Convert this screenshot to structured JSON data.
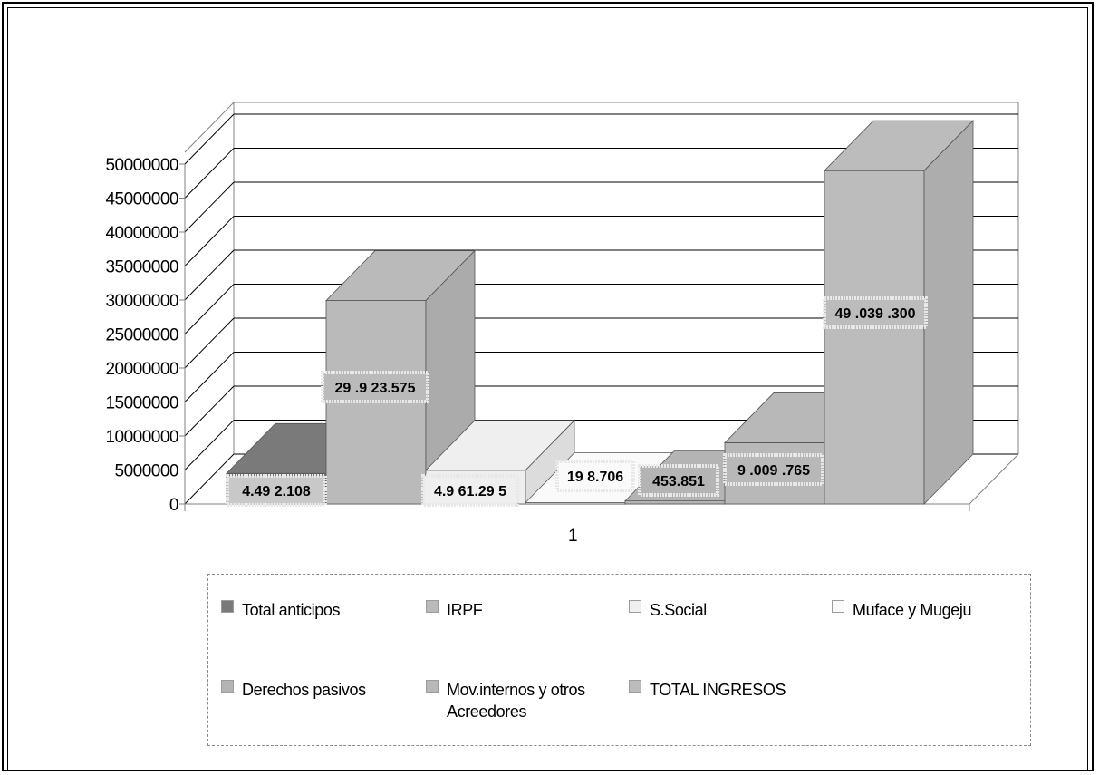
{
  "chart_data": {
    "type": "bar",
    "categories": [
      "1"
    ],
    "ylim": [
      0,
      50000000
    ],
    "y_ticks": [
      "0",
      "5000000",
      "10000000",
      "15000000",
      "20000000",
      "25000000",
      "30000000",
      "35000000",
      "40000000",
      "45000000",
      "50000000"
    ],
    "legend_position": "bottom",
    "grid": true,
    "series": [
      {
        "name": "Total anticipos",
        "values": [
          4492108
        ],
        "label": "4.49 2.108",
        "color": "#7a7a7a"
      },
      {
        "name": "IRPF",
        "values": [
          29923575
        ],
        "label": "29 .9 23.575",
        "color": "#bababa"
      },
      {
        "name": "S.Social",
        "values": [
          4961295
        ],
        "label": "4.9 61.29 5",
        "color": "#efefef"
      },
      {
        "name": "Muface y Mugeju",
        "values": [
          198706
        ],
        "label": "19 8.706",
        "color": "#fafafa"
      },
      {
        "name": "Derechos pasivos",
        "values": [
          453851
        ],
        "label": "453.851",
        "color": "#b4b4b4"
      },
      {
        "name": "Mov.internos y otros\nAcreedores",
        "values": [
          9009765
        ],
        "label": "9 .009 .765",
        "color": "#b8b8b8"
      },
      {
        "name": "TOTAL INGRESOS",
        "values": [
          49039300
        ],
        "label": "49 .039 .300",
        "color": "#bcbcbc"
      }
    ]
  }
}
